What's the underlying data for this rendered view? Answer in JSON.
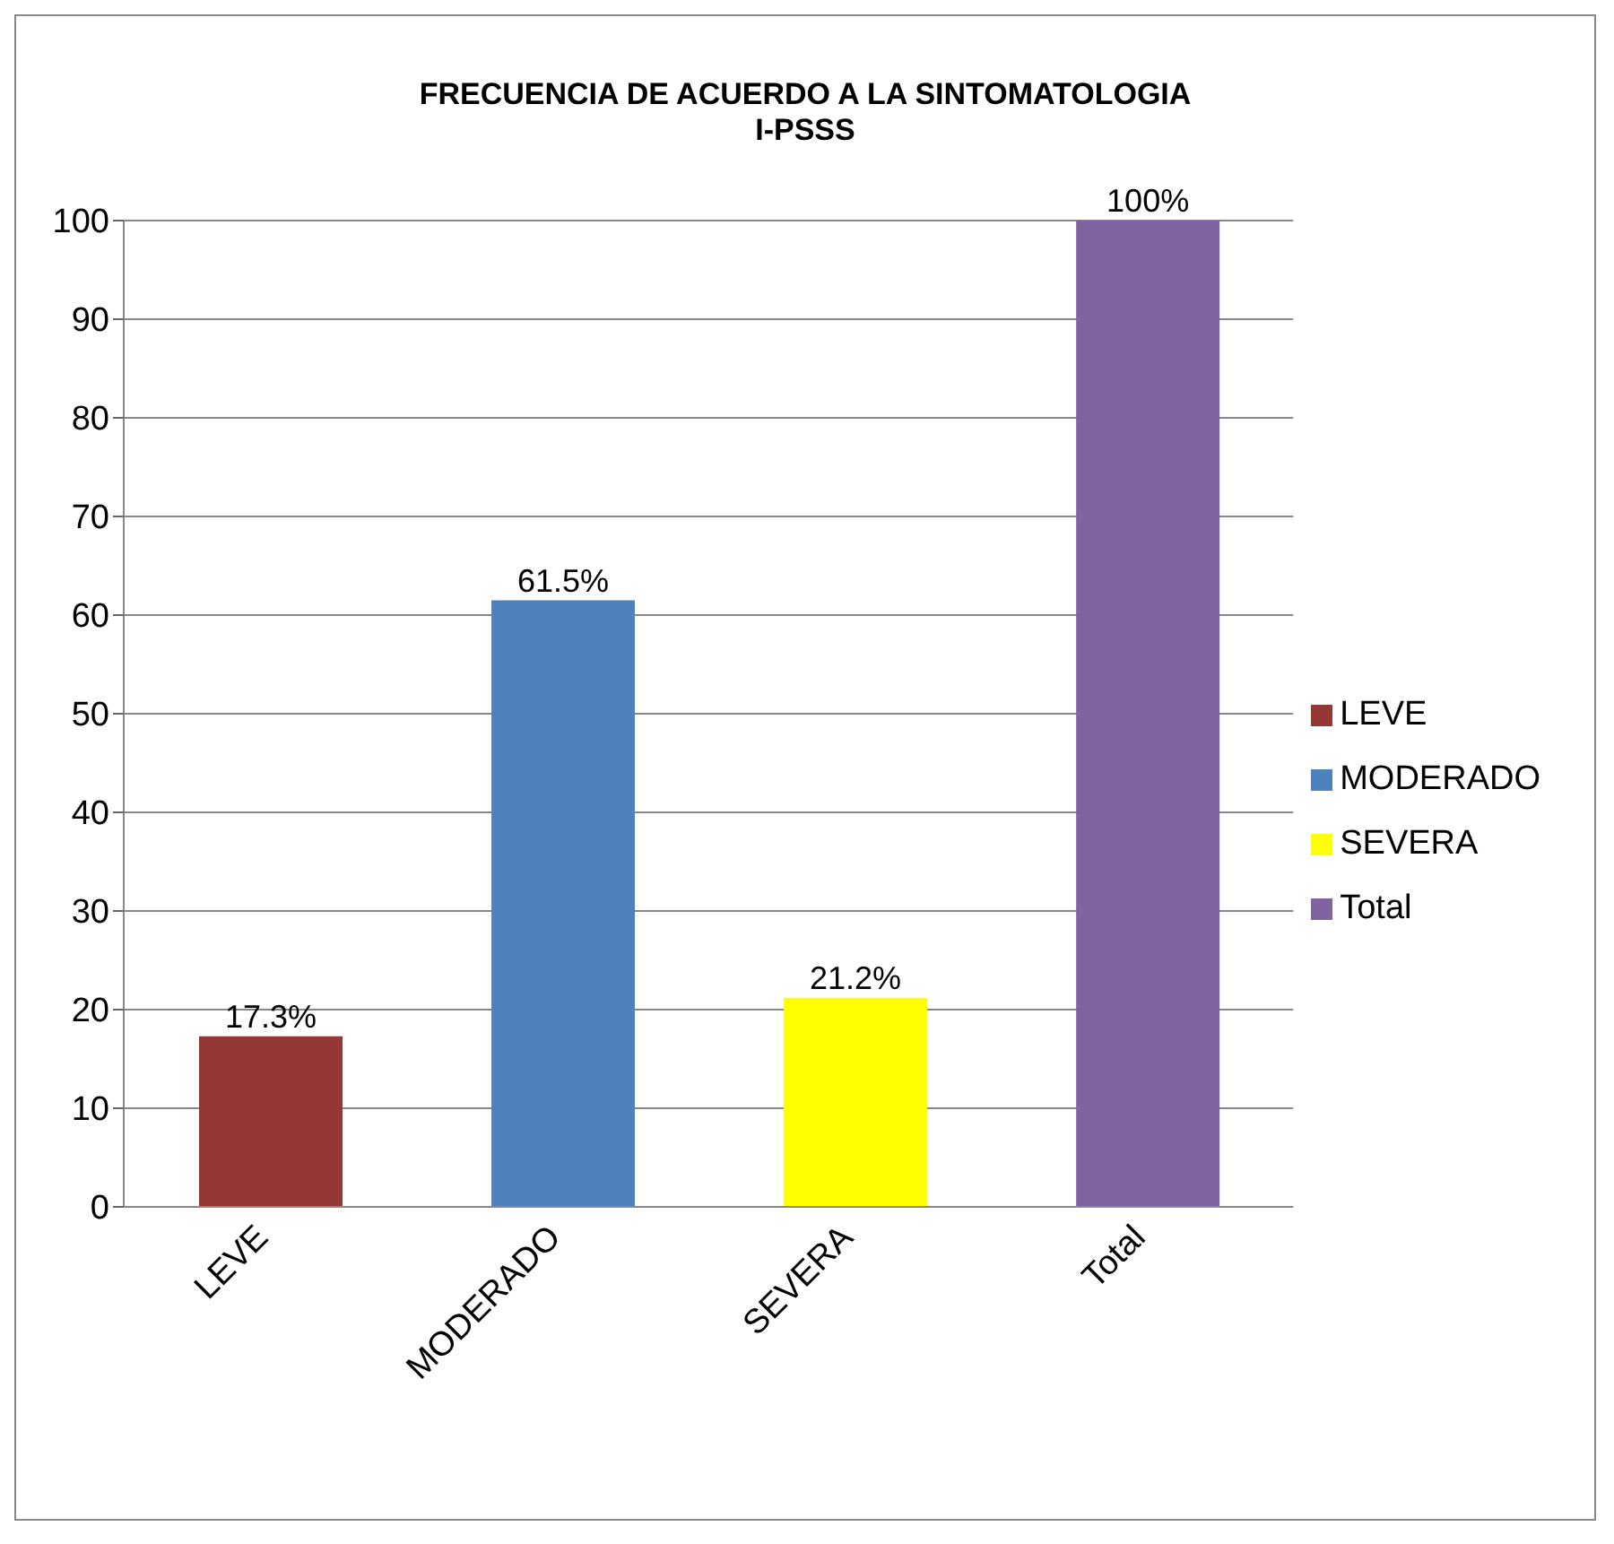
{
  "chart_data": {
    "type": "bar",
    "title": "FRECUENCIA DE ACUERDO A LA SINTOMATOLOGIA",
    "subtitle": "I-PSSS",
    "categories": [
      "LEVE",
      "MODERADO",
      "SEVERA",
      "Total"
    ],
    "series": [
      {
        "name": "LEVE",
        "color": "#953735",
        "values": [
          17.3,
          null,
          null,
          null
        ],
        "value_labels": [
          "17.3%",
          null,
          null,
          null
        ]
      },
      {
        "name": "MODERADO",
        "color": "#4f81bd",
        "values": [
          null,
          61.5,
          null,
          null
        ],
        "value_labels": [
          null,
          "61.5%",
          null,
          null
        ]
      },
      {
        "name": "SEVERA",
        "color": "#ffff00",
        "values": [
          null,
          null,
          21.2,
          null
        ],
        "value_labels": [
          null,
          null,
          "21.2%",
          null
        ]
      },
      {
        "name": "Total",
        "color": "#8064a2",
        "values": [
          null,
          null,
          null,
          100
        ],
        "value_labels": [
          null,
          null,
          null,
          "100%"
        ]
      }
    ],
    "ylim": [
      0,
      100
    ],
    "yticks": [
      0,
      10,
      20,
      30,
      40,
      50,
      60,
      70,
      80,
      90,
      100
    ],
    "grid": "y",
    "legend": "right"
  }
}
